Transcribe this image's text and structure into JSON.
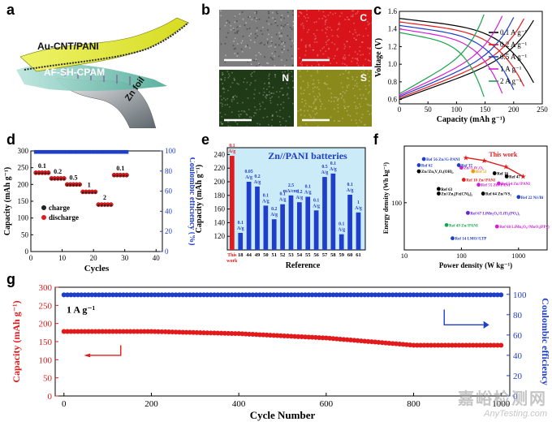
{
  "panels": {
    "a": {
      "label": "a",
      "layer_top": "Au-CNT/PANI",
      "layer_mid": "AF-SH-CPAM",
      "layer_bottom": "Zn foil",
      "colors": {
        "top": "#e8ee3a",
        "mid": "#7ac8b8",
        "bottom": "#9aa1a6"
      }
    },
    "b": {
      "label": "b",
      "maps": [
        {
          "element": "",
          "color": "#7d7d7d"
        },
        {
          "element": "C",
          "color": "#d8141a"
        },
        {
          "element": "N",
          "color": "#1f3a17"
        },
        {
          "element": "S",
          "color": "#8a8a1c"
        }
      ]
    },
    "c": {
      "label": "c"
    },
    "d": {
      "label": "d"
    },
    "e": {
      "label": "e"
    },
    "f": {
      "label": "f"
    },
    "g": {
      "label": "g"
    }
  },
  "chart_data": [
    {
      "id": "c",
      "type": "line",
      "xlabel": "Capacity (mAh g⁻¹)",
      "ylabel": "Voltage (V)",
      "xlim": [
        0,
        250
      ],
      "ylim": [
        0.55,
        1.6
      ],
      "xticks": [
        "0",
        "50",
        "100",
        "150",
        "200",
        "250"
      ],
      "yticks": [
        "0.6",
        "0.8",
        "1.0",
        "1.2",
        "1.4",
        "1.6"
      ],
      "legend_position": "right",
      "series": [
        {
          "name": "0.1 A g⁻¹",
          "color": "#000000",
          "capacity": 235
        },
        {
          "name": "0.2 A g⁻¹",
          "color": "#e31a1c",
          "capacity": 218
        },
        {
          "name": "0.5 A g⁻¹",
          "color": "#1f3ec9",
          "capacity": 200
        },
        {
          "name": "1 A g⁻¹",
          "color": "#d21fd4",
          "capacity": 180
        },
        {
          "name": "2 A g⁻¹",
          "color": "#1aa34a",
          "capacity": 148
        }
      ]
    },
    {
      "id": "d",
      "type": "scatter",
      "xlabel": "Cycles",
      "ylabel": "Capacity (mAh g⁻¹)",
      "y2label": "Coulombic efficiency (%)",
      "xlim": [
        0,
        42
      ],
      "ylim": [
        0,
        300
      ],
      "y2lim": [
        0,
        100
      ],
      "xticks": [
        "0",
        "10",
        "20",
        "30",
        "40"
      ],
      "yticks": [
        "0",
        "50",
        "100",
        "150",
        "200",
        "250",
        "300"
      ],
      "y2ticks": [
        "0",
        "20",
        "40",
        "60",
        "80",
        "100"
      ],
      "legend": [
        "charge",
        "discharge"
      ],
      "segments": [
        {
          "label": "0.1",
          "start": 1,
          "end": 5,
          "value": 235
        },
        {
          "label": "0.2",
          "start": 6,
          "end": 10,
          "value": 218
        },
        {
          "label": "0.5",
          "start": 11,
          "end": 15,
          "value": 200
        },
        {
          "label": "1",
          "start": 16,
          "end": 20,
          "value": 178
        },
        {
          "label": "2",
          "start": 21,
          "end": 25,
          "value": 140
        },
        {
          "label": "0.1",
          "start": 26,
          "end": 30,
          "value": 228
        }
      ],
      "efficiency": 99
    },
    {
      "id": "e",
      "type": "bar",
      "title": "Zn//PANI batteries",
      "xlabel": "Reference",
      "ylabel": "Capacity (mAh g⁻¹)",
      "ylim": [
        100,
        250
      ],
      "yticks": [
        "120",
        "140",
        "160",
        "180",
        "200",
        "220",
        "240"
      ],
      "categories": [
        "This work",
        "18",
        "44",
        "49",
        "50",
        "51",
        "52",
        "53",
        "54",
        "55",
        "56",
        "57",
        "58",
        "59",
        "60",
        "61"
      ],
      "values": [
        238,
        125,
        200,
        193,
        165,
        145,
        167,
        180,
        170,
        178,
        158,
        207,
        212,
        123,
        181,
        155
      ],
      "bar_labels": [
        "0.1 A/g",
        "0.1 A/g",
        "0.05 A/g",
        "0.2 A/g",
        "0.1 A/g",
        "0.2 A/g",
        "0.1 A/g",
        "2.5 mA/cm²",
        "0.2 A/g",
        "0.1 A/g",
        "0.1 A/g",
        "0.5 A/g",
        "0.1 A/g",
        "0.1 A/g",
        "0.1 A/g",
        "1 A/g"
      ],
      "highlight_color": "#e31a1c",
      "bar_color": "#1f3ec9"
    },
    {
      "id": "f",
      "type": "scatter",
      "xlabel": "Power density (W kg⁻¹)",
      "ylabel": "Energy density (Wh kg⁻¹)",
      "xscale": "log",
      "yscale": "log",
      "xticks": [
        "10",
        "100",
        "1000"
      ],
      "yticks": [
        "100"
      ],
      "this_work_label": "This work",
      "this_work": [
        {
          "x": 120,
          "y": 300
        },
        {
          "x": 250,
          "y": 280
        },
        {
          "x": 600,
          "y": 240
        },
        {
          "x": 1200,
          "y": 190
        }
      ],
      "refs": [
        {
          "name": "Ref 56 Zn//G-PANI",
          "x": 22,
          "y": 290,
          "color": "#1f3ec9"
        },
        {
          "name": "Ref 62",
          "x": 18,
          "y": 250,
          "color": "#1f3ec9"
        },
        {
          "name": "Zn//Zn₃V₂O₇(OH)₂",
          "x": 18,
          "y": 215,
          "color": "#000000"
        },
        {
          "name": "Zn//LiV₃O₈",
          "x": 100,
          "y": 235,
          "color": "#d21fd4"
        },
        {
          "name": "Ref 37",
          "x": 90,
          "y": 250,
          "color": "#1f3ec9"
        },
        {
          "name": "Ref 51",
          "x": 160,
          "y": 215,
          "color": "#e8a000"
        },
        {
          "name": "Ref 18 Zn//PANI",
          "x": 110,
          "y": 175,
          "color": "#e31a1c"
        },
        {
          "name": "Ref 16",
          "x": 380,
          "y": 205,
          "color": "#000000"
        },
        {
          "name": "Ref 47",
          "x": 620,
          "y": 190,
          "color": "#000000"
        },
        {
          "name": "Ref 63",
          "x": 40,
          "y": 140,
          "color": "#000000"
        },
        {
          "name": "Zn//Zn₃[Fe(CN)₆]₂",
          "x": 40,
          "y": 125,
          "color": "#000000"
        },
        {
          "name": "Ref 55 Zn//PANI",
          "x": 200,
          "y": 155,
          "color": "#d21fd4"
        },
        {
          "name": "Ref 54 Zn//PANI",
          "x": 450,
          "y": 160,
          "color": "#d21fd4"
        },
        {
          "name": "Ref 64 Zn//VS₂",
          "x": 240,
          "y": 125,
          "color": "#000000"
        },
        {
          "name": "Ref 22 Ni//Bi",
          "x": 1000,
          "y": 115,
          "color": "#1f3ec9"
        },
        {
          "name": "Ref 67 LiMn₂O₄//LiTi₂(PO₄)₃",
          "x": 130,
          "y": 78,
          "color": "#6a1fd4"
        },
        {
          "name": "Ref 49 Zn//PANI",
          "x": 55,
          "y": 58,
          "color": "#1aa34a"
        },
        {
          "name": "Ref 68 LiMn₂O₄//MoO₃(PPy)",
          "x": 420,
          "y": 56,
          "color": "#d21fd4"
        },
        {
          "name": "Ref 14 LMO//LTP",
          "x": 70,
          "y": 42,
          "color": "#1f3ec9"
        }
      ]
    },
    {
      "id": "g",
      "type": "scatter",
      "xlabel": "Cycle Number",
      "ylabel": "Capacity (mAh g⁻¹)",
      "y2label": "Coulombic efficiency",
      "annotation": "1 A g⁻¹",
      "xlim": [
        -20,
        1020
      ],
      "ylim": [
        0,
        300
      ],
      "y2lim": [
        0,
        107
      ],
      "xticks": [
        "0",
        "200",
        "400",
        "600",
        "800",
        "1000"
      ],
      "yticks": [
        "0",
        "50",
        "100",
        "150",
        "200",
        "250",
        "300"
      ],
      "y2ticks": [
        "0",
        "20",
        "40",
        "60",
        "80",
        "100"
      ],
      "capacity_trend": [
        {
          "x": 0,
          "y": 178
        },
        {
          "x": 200,
          "y": 178
        },
        {
          "x": 400,
          "y": 172
        },
        {
          "x": 600,
          "y": 160
        },
        {
          "x": 800,
          "y": 140
        },
        {
          "x": 1000,
          "y": 140
        }
      ],
      "efficiency": 99.5
    }
  ]
}
